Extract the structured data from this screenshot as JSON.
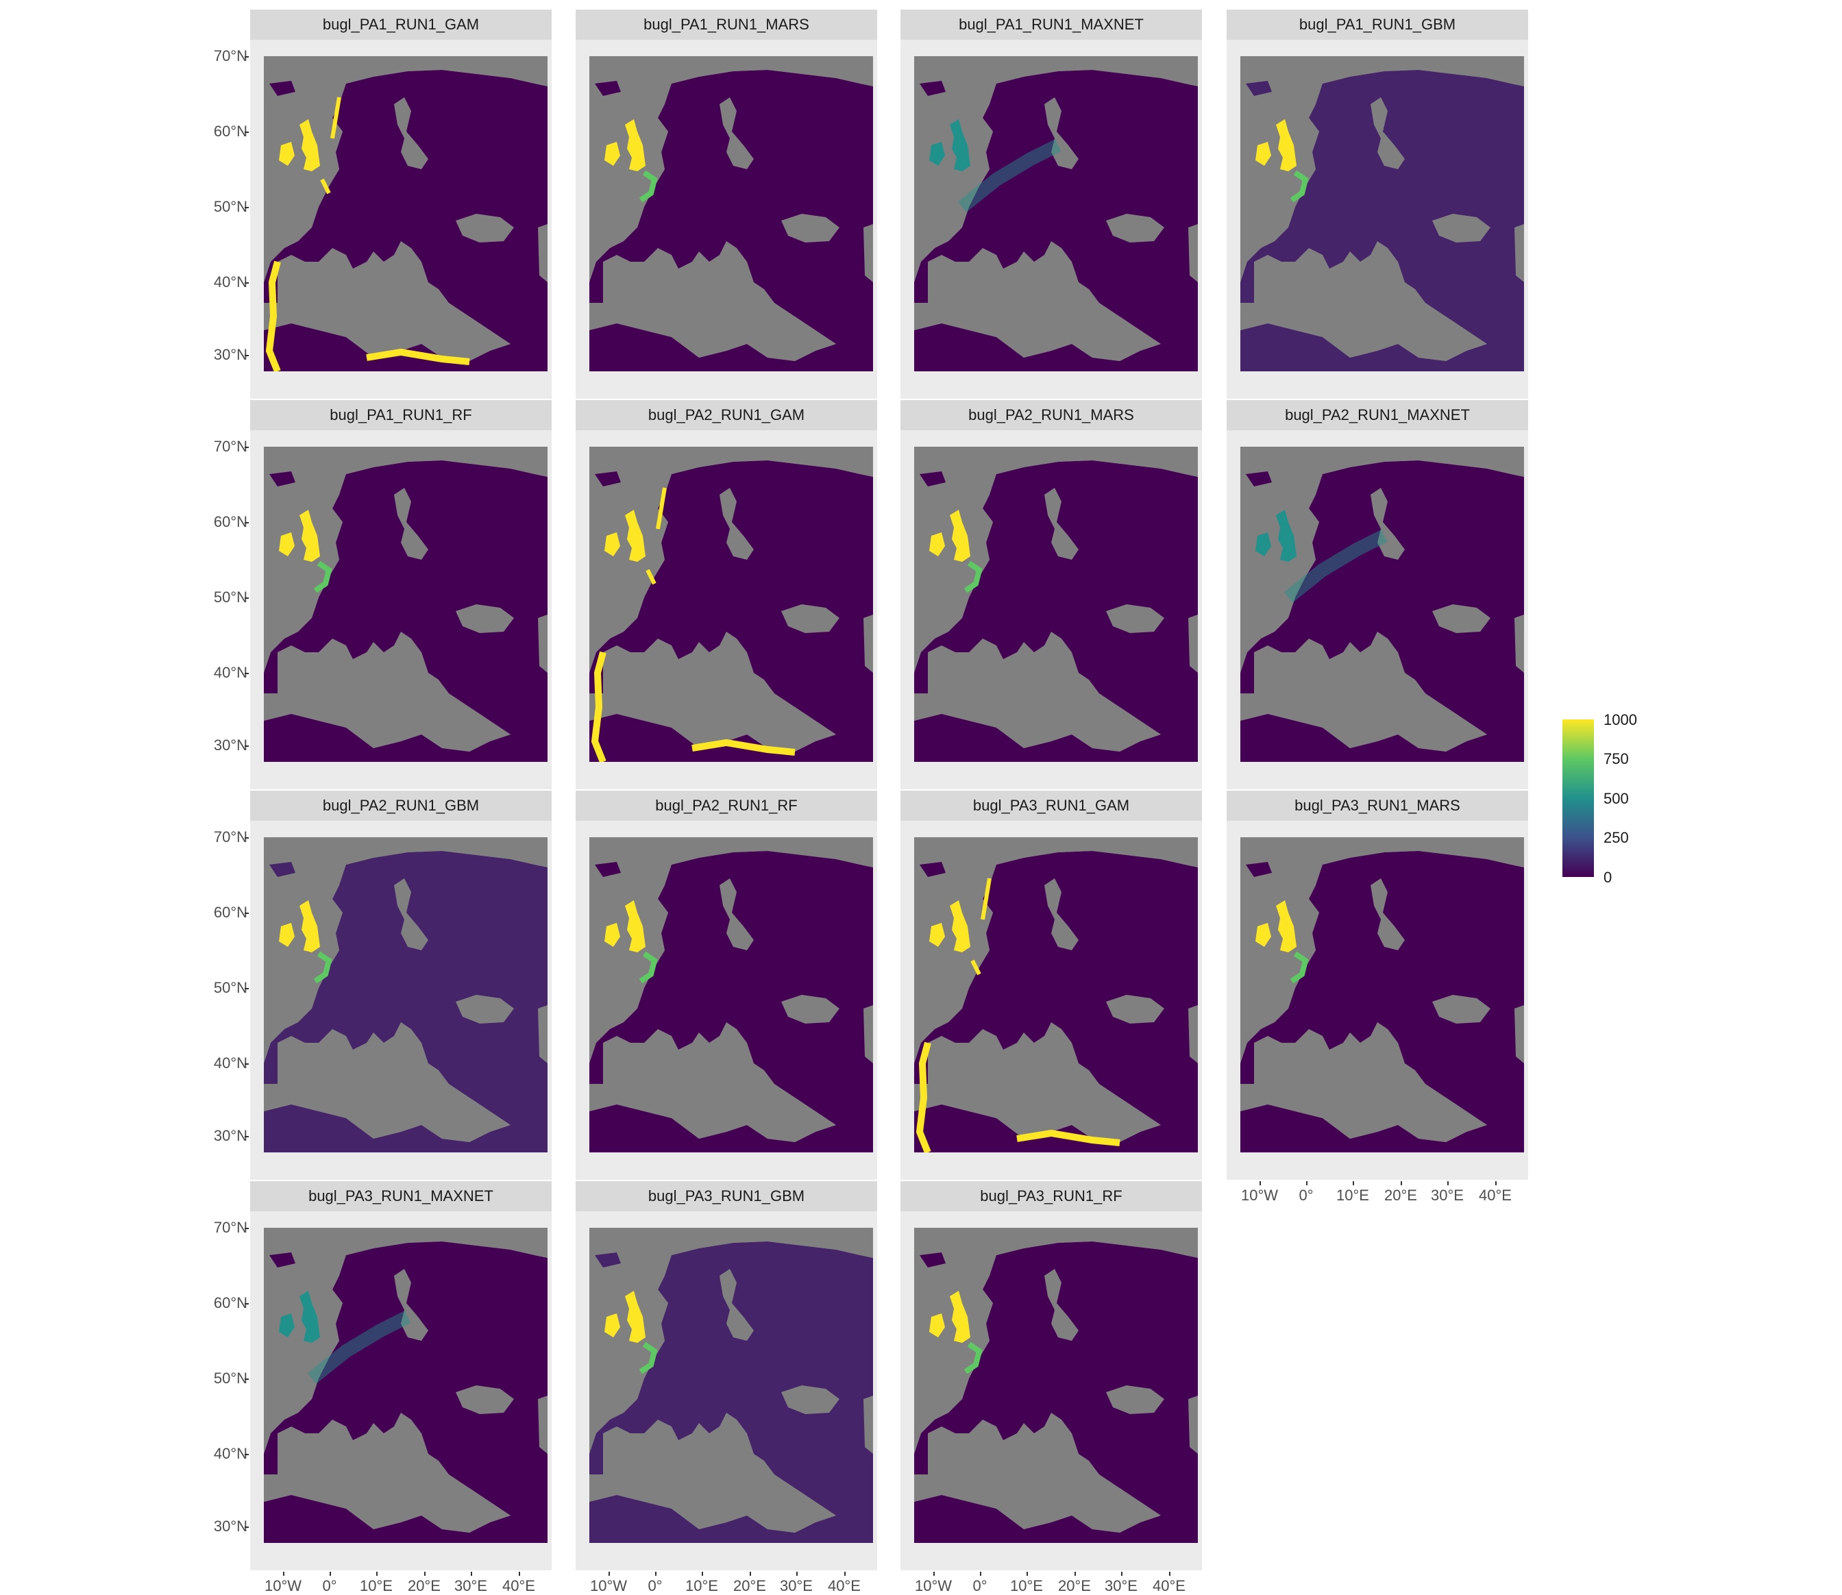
{
  "panels": [
    {
      "title": "bugl_PA1_RUN1_GAM",
      "variant": "gam"
    },
    {
      "title": "bugl_PA1_RUN1_MARS",
      "variant": "mars"
    },
    {
      "title": "bugl_PA1_RUN1_MAXNET",
      "variant": "maxnet"
    },
    {
      "title": "bugl_PA1_RUN1_GBM",
      "variant": "gbm"
    },
    {
      "title": "bugl_PA1_RUN1_RF",
      "variant": "rf"
    },
    {
      "title": "bugl_PA2_RUN1_GAM",
      "variant": "gam"
    },
    {
      "title": "bugl_PA2_RUN1_MARS",
      "variant": "mars"
    },
    {
      "title": "bugl_PA2_RUN1_MAXNET",
      "variant": "maxnet"
    },
    {
      "title": "bugl_PA2_RUN1_GBM",
      "variant": "gbm"
    },
    {
      "title": "bugl_PA2_RUN1_RF",
      "variant": "rf"
    },
    {
      "title": "bugl_PA3_RUN1_GAM",
      "variant": "gam"
    },
    {
      "title": "bugl_PA3_RUN1_MARS",
      "variant": "mars"
    },
    {
      "title": "bugl_PA3_RUN1_MAXNET",
      "variant": "maxnet"
    },
    {
      "title": "bugl_PA3_RUN1_GBM",
      "variant": "gbm"
    },
    {
      "title": "bugl_PA3_RUN1_RF",
      "variant": "rf"
    }
  ],
  "y_ticks": [
    "70°N",
    "60°N",
    "50°N",
    "40°N",
    "30°N"
  ],
  "x_ticks": [
    "10°W",
    "0°",
    "10°E",
    "20°E",
    "30°E",
    "40°E"
  ],
  "legend": {
    "labels": [
      "1000",
      "750",
      "500",
      "250",
      "0"
    ],
    "colors": [
      "#fde725",
      "#5ec962",
      "#21918c",
      "#3b528b",
      "#440154"
    ]
  },
  "colors": {
    "land_low": "#440154",
    "land_gbm": "#46246a",
    "sea": "#808080",
    "high": "#fde725",
    "mid": "#21918c",
    "mid_high": "#5ec962"
  }
}
